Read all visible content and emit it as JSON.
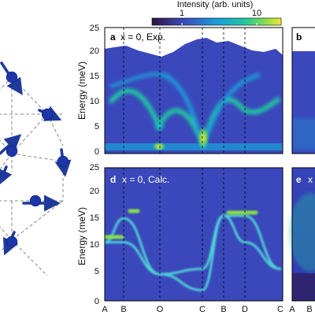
{
  "colorbar": {
    "label": "Intensity (arb. units)",
    "tick_1": "1",
    "tick_10": "10",
    "colors": [
      "#30123b",
      "#3b4cc0",
      "#1a9dd8",
      "#22c7a1",
      "#86e04a",
      "#f5e23a"
    ]
  },
  "axes": {
    "ylabel": "Energy (meV)",
    "yticks_top": [
      "0",
      "5",
      "10",
      "15",
      "20",
      "25"
    ],
    "yticks_bottom": [
      "0",
      "5",
      "10",
      "15",
      "20",
      "25"
    ],
    "xticks": [
      "A",
      "B",
      "O",
      "C",
      "B",
      "D",
      "C"
    ],
    "xticks_right": [
      "A",
      "B"
    ]
  },
  "panels": {
    "a": {
      "letter": "a",
      "label": "x = 0, Exp."
    },
    "b": {
      "letter": "b"
    },
    "d": {
      "letter": "d",
      "label": "x = 0, Calc."
    },
    "e": {
      "letter": "e",
      "label": "x"
    }
  },
  "chart_data": [
    {
      "type": "heatmap",
      "title": "x = 0, Exp.",
      "ylabel": "Energy (meV)",
      "ylim": [
        0,
        25
      ],
      "x_ticks": [
        "A",
        "B",
        "O",
        "C",
        "B",
        "D",
        "C"
      ],
      "features": [
        {
          "name": "magnon band",
          "x": [
            "A",
            "B",
            "O",
            "C",
            "B",
            "D",
            "C"
          ],
          "y": [
            9,
            13,
            5,
            1,
            13,
            10,
            9
          ]
        },
        {
          "name": "upper edge of signal",
          "x": [
            "A",
            "B",
            "O",
            "C",
            "B",
            "D",
            "C"
          ],
          "y": [
            21.5,
            21,
            19.5,
            22.5,
            21,
            20,
            19
          ]
        }
      ]
    },
    {
      "type": "heatmap",
      "title": "x = 0, Calc.",
      "ylabel": "Energy (meV)",
      "ylim": [
        0,
        25
      ],
      "x_ticks": [
        "A",
        "B",
        "O",
        "C",
        "B",
        "D",
        "C"
      ],
      "series": [
        {
          "x": [
            "A",
            "B",
            "O",
            "C",
            "B",
            "D",
            "C"
          ],
          "y": [
            11,
            15.5,
            5,
            2,
            16,
            11,
            6
          ]
        },
        {
          "x": [
            "A",
            "B",
            "O",
            "C",
            "B",
            "D",
            "C"
          ],
          "y": [
            11,
            11,
            5,
            6,
            16,
            16,
            6
          ]
        }
      ]
    }
  ]
}
